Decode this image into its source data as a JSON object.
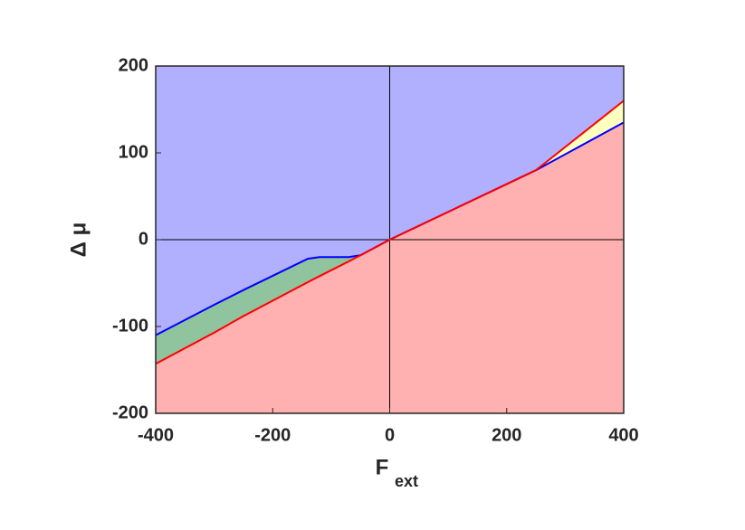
{
  "chart_data": {
    "type": "line",
    "xlabel": "F",
    "xlabel_sub": "ext",
    "ylabel": "Δ μ",
    "x": [
      -400,
      -300,
      -250,
      -140,
      -120,
      -70,
      -50,
      0,
      250,
      400
    ],
    "series": [
      {
        "color": "#0000ff",
        "values": [
          -110,
          -75,
          -58,
          -22,
          -20,
          -20,
          -18,
          0,
          80,
          135
        ]
      },
      {
        "color": "#ff0000",
        "values": [
          -143,
          -107,
          -88,
          -49,
          -42,
          -25,
          -18,
          0,
          80,
          160
        ]
      }
    ],
    "region_colors": {
      "top": "#b0b0ff",
      "bottom": "#ffb0b0",
      "first_above": "#8fc49e",
      "second_above": "#ffffc0"
    },
    "xlim": [
      -400,
      400
    ],
    "xticks": [
      -400,
      -200,
      0,
      200,
      400
    ],
    "ylim": [
      -200,
      200
    ],
    "yticks": [
      -200,
      -100,
      0,
      100,
      200
    ]
  }
}
